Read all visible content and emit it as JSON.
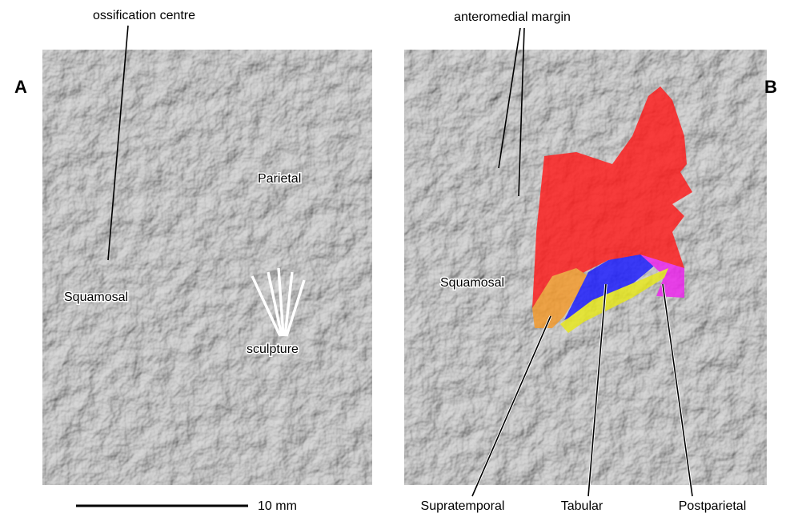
{
  "panels": [
    {
      "label": "A",
      "annotations": {
        "ossification": "ossification centre",
        "parietal": "Parietal",
        "squamosal": "Squamosal",
        "sculpture": "sculpture"
      }
    },
    {
      "label": "B",
      "annotations": {
        "margin": "anteromedial margin",
        "squamosal": "Squamosal",
        "supratemporal": "Supratemporal",
        "tabular": "Tabular",
        "postparietal": "Postparietal"
      }
    }
  ],
  "scale_bar": {
    "label": "10 mm"
  }
}
